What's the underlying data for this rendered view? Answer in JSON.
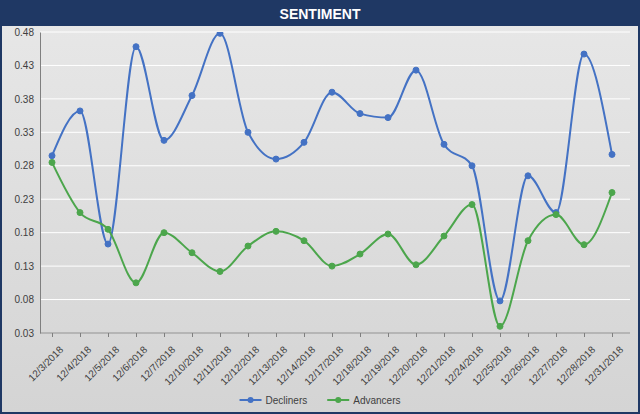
{
  "chart_data": {
    "type": "line",
    "title": "SENTIMENT",
    "categories": [
      "12/3/2018",
      "12/4/2018",
      "12/5/2018",
      "12/6/2018",
      "12/7/2018",
      "12/10/2018",
      "12/11/2018",
      "12/12/2018",
      "12/13/2018",
      "12/14/2018",
      "12/17/2018",
      "12/18/2018",
      "12/19/2018",
      "12/20/2018",
      "12/21/2018",
      "12/24/2018",
      "12/25/2018",
      "12/26/2018",
      "12/27/2018",
      "12/28/2018",
      "12/31/2018"
    ],
    "series": [
      {
        "name": "Decliners",
        "color": "#4472c4",
        "marker": "circle",
        "values": [
          0.295,
          0.362,
          0.163,
          0.458,
          0.318,
          0.385,
          0.478,
          0.33,
          0.29,
          0.315,
          0.39,
          0.358,
          0.352,
          0.423,
          0.312,
          0.28,
          0.078,
          0.265,
          0.21,
          0.447,
          0.297
        ]
      },
      {
        "name": "Advancers",
        "color": "#4ca64c",
        "marker": "circle",
        "values": [
          0.285,
          0.21,
          0.185,
          0.105,
          0.18,
          0.15,
          0.122,
          0.16,
          0.182,
          0.168,
          0.13,
          0.148,
          0.178,
          0.132,
          0.175,
          0.222,
          0.04,
          0.168,
          0.207,
          0.162,
          0.24
        ]
      }
    ],
    "ylim": [
      0.03,
      0.48
    ],
    "yticks": [
      0.03,
      0.08,
      0.13,
      0.18,
      0.23,
      0.28,
      0.33,
      0.38,
      0.43,
      0.48
    ],
    "grid": true,
    "legend": "bottom"
  }
}
